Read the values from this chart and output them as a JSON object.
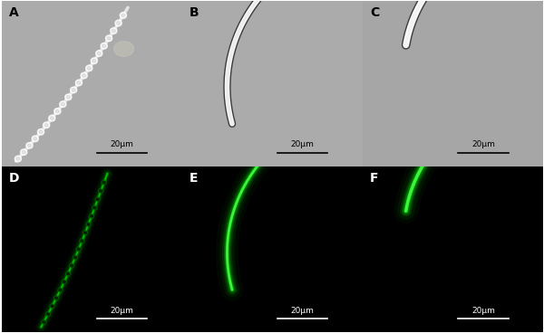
{
  "figsize": [
    6.0,
    3.68
  ],
  "dpi": 100,
  "panels": [
    "A",
    "B",
    "C",
    "D",
    "E",
    "F"
  ],
  "top_bg": "#a8a8a0",
  "bottom_bg": "#000000",
  "label_color_top": "#000000",
  "label_color_bottom": "#ffffff",
  "scalebar_color_top": "#000000",
  "scalebar_color_bottom": "#ffffff",
  "scalebar_text": "20μm",
  "green_dim": "#006600",
  "green_mid": "#00aa00",
  "green_bright": "#00dd00",
  "green_core": "#44ff44",
  "label_fontsize": 10,
  "scalebar_fontsize": 6.5,
  "wspace": 0.005,
  "hspace": 0.005
}
